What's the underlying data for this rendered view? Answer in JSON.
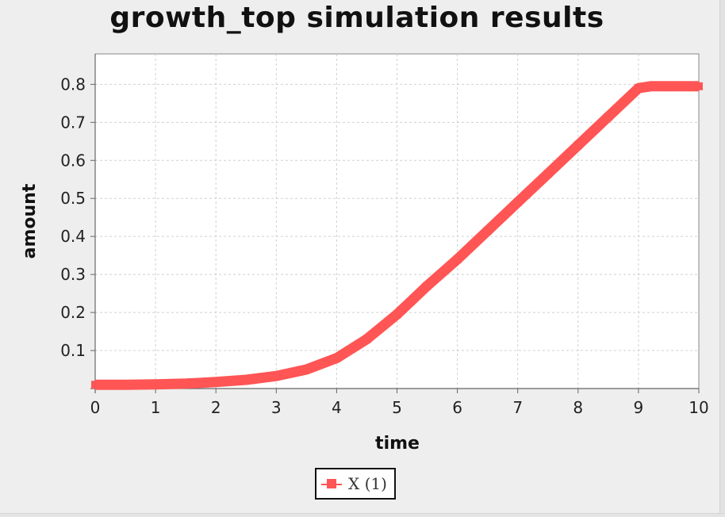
{
  "chart_data": {
    "type": "line",
    "title": "growth_top simulation results",
    "xlabel": "time",
    "ylabel": "amount",
    "xlim": [
      0,
      10
    ],
    "ylim": [
      0,
      0.88
    ],
    "xticks": [
      "0",
      "1",
      "2",
      "3",
      "4",
      "5",
      "6",
      "7",
      "8",
      "9",
      "10"
    ],
    "yticks": [
      "0.1",
      "0.2",
      "0.3",
      "0.4",
      "0.5",
      "0.6",
      "0.7",
      "0.8"
    ],
    "grid": true,
    "legend_position": "bottom-center",
    "series": [
      {
        "name": "X (1)",
        "color": "#ff5555",
        "x": [
          0,
          0.5,
          1,
          1.5,
          2,
          2.5,
          3,
          3.5,
          4,
          4.5,
          5,
          5.5,
          6,
          6.5,
          7,
          7.5,
          8,
          8.5,
          9,
          9.2,
          9.5,
          10
        ],
        "y": [
          0.01,
          0.01,
          0.011,
          0.013,
          0.017,
          0.023,
          0.033,
          0.05,
          0.08,
          0.13,
          0.195,
          0.27,
          0.34,
          0.415,
          0.49,
          0.565,
          0.64,
          0.715,
          0.79,
          0.795,
          0.795,
          0.795
        ]
      }
    ]
  }
}
